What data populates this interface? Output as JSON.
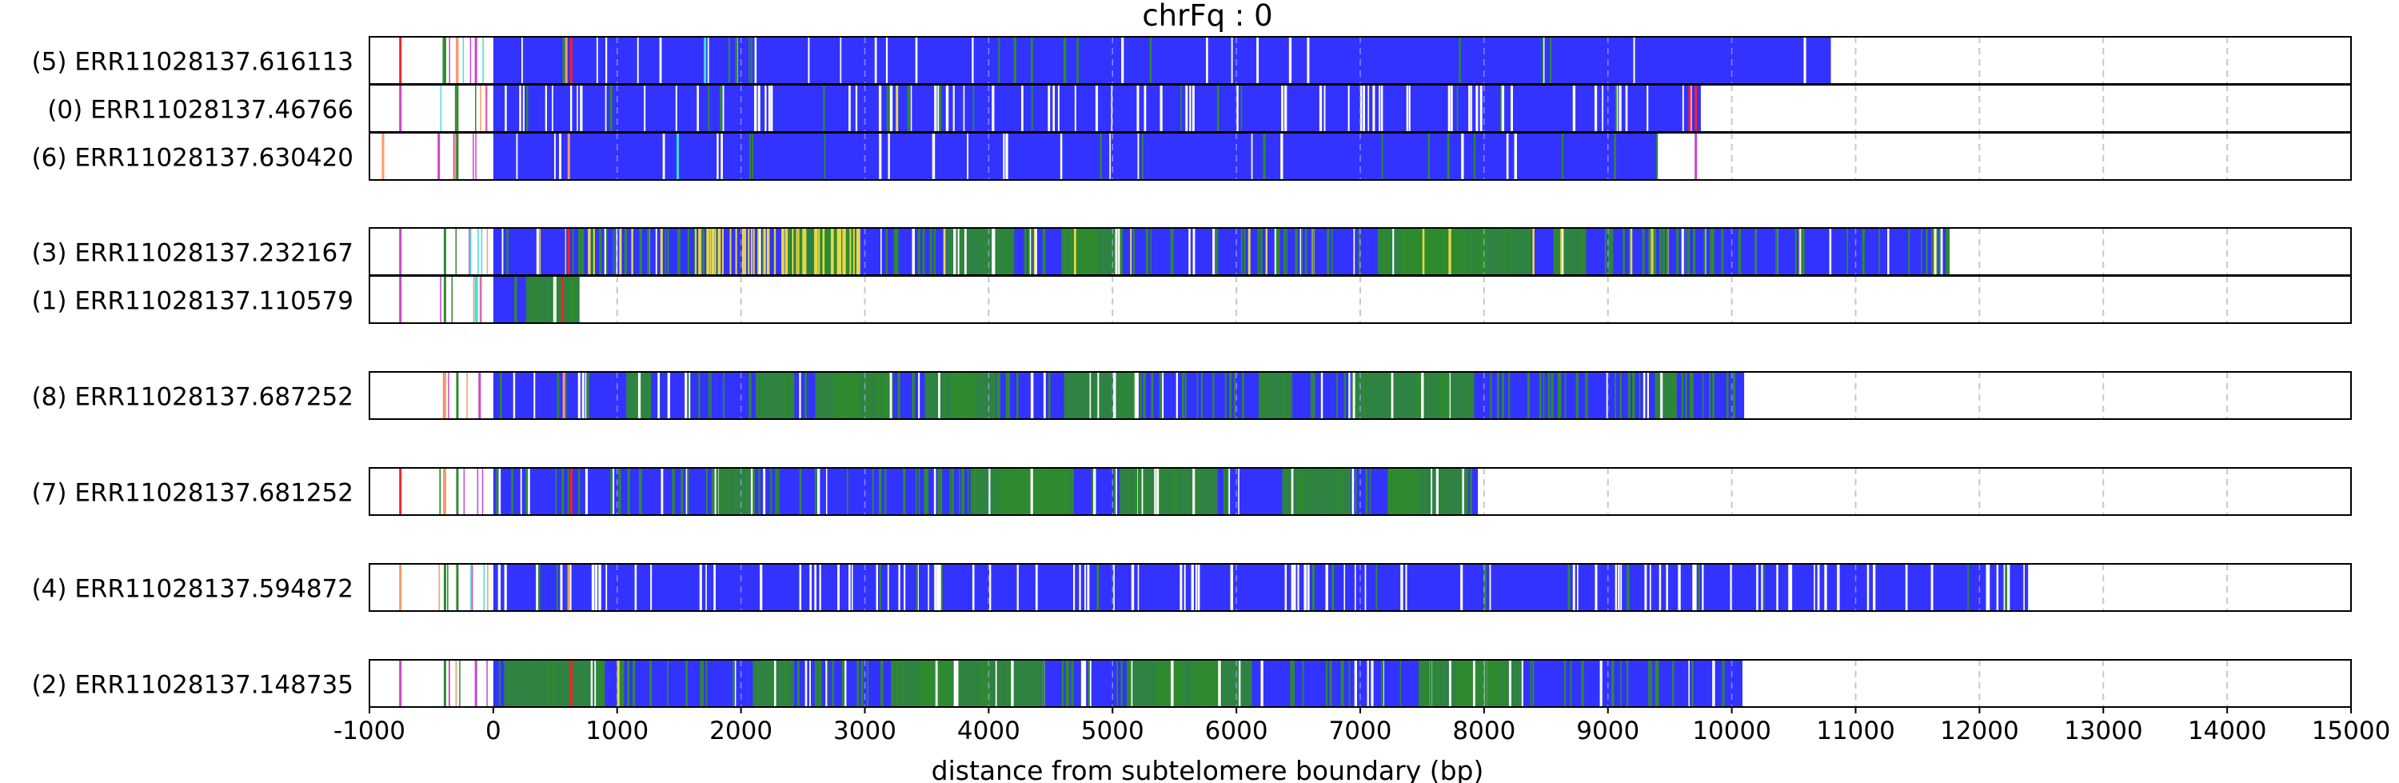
{
  "chart_data": {
    "type": "bar",
    "title": "chrFq : 0",
    "xlabel": "distance from subtelomere boundary (bp)",
    "ylabel": "",
    "xlim": [
      -1000,
      15000
    ],
    "xticks": [
      -1000,
      0,
      1000,
      2000,
      3000,
      4000,
      5000,
      6000,
      7000,
      8000,
      9000,
      10000,
      11000,
      12000,
      13000,
      14000,
      15000
    ],
    "grid": "vertical dashed at each tick",
    "colors": {
      "blue": "#3333ff",
      "green": "#2e8b2e",
      "yellow": "#e6d84a",
      "red": "#ff2020",
      "magenta": "#cc44cc",
      "cyan": "#40e0d0",
      "orange": "#ff9966",
      "white": "#ffffff",
      "grid": "#c8c8c8"
    },
    "groups": [
      {
        "reads": [
          {
            "label": "(5) ERR11028137.616113",
            "start": -1000,
            "end": 10800,
            "pattern": "blue",
            "specials": [
              [
                -760,
                "red"
              ],
              [
                -400,
                "green"
              ],
              [
                -300,
                "orange"
              ],
              [
                -150,
                "magenta"
              ],
              [
                580,
                "orange"
              ],
              [
                620,
                "red"
              ],
              [
                1700,
                "cyan"
              ]
            ]
          },
          {
            "label": "(0) ERR11028137.46766",
            "start": -1000,
            "end": 9750,
            "pattern": "blue-white",
            "specials": [
              [
                -760,
                "magenta"
              ],
              [
                -300,
                "green"
              ],
              [
                3250,
                "yellow"
              ],
              [
                9650,
                "red"
              ],
              [
                9700,
                "red"
              ]
            ]
          },
          {
            "label": "(6) ERR11028137.630420",
            "start": -1000,
            "end": 9400,
            "pattern": "blue",
            "specials": [
              [
                -900,
                "orange"
              ],
              [
                -450,
                "magenta"
              ],
              [
                -300,
                "green"
              ],
              [
                600,
                "orange"
              ],
              [
                1480,
                "cyan"
              ],
              [
                9700,
                "magenta"
              ]
            ]
          }
        ]
      },
      {
        "reads": [
          {
            "label": "(3) ERR11028137.232167",
            "start": -1000,
            "end": 11750,
            "pattern": "mixed-yellow",
            "specials": [
              [
                -760,
                "magenta"
              ],
              [
                -400,
                "green"
              ],
              [
                600,
                "red"
              ]
            ]
          },
          {
            "label": "(1) ERR11028137.110579",
            "start": -1000,
            "end": 700,
            "pattern": "mixed",
            "specials": [
              [
                -760,
                "magenta"
              ],
              [
                -400,
                "green"
              ],
              [
                -150,
                "cyan"
              ],
              [
                550,
                "red"
              ]
            ]
          }
        ]
      },
      {
        "reads": [
          {
            "label": "(8) ERR11028137.687252",
            "start": -1000,
            "end": 10100,
            "pattern": "mixed-green",
            "specials": [
              [
                -400,
                "orange"
              ],
              [
                -300,
                "green"
              ],
              [
                -120,
                "magenta"
              ],
              [
                560,
                "orange"
              ]
            ]
          }
        ]
      },
      {
        "reads": [
          {
            "label": "(7) ERR11028137.681252",
            "start": -1000,
            "end": 7950,
            "pattern": "mixed-green",
            "specials": [
              [
                -760,
                "red"
              ],
              [
                -400,
                "orange"
              ],
              [
                -300,
                "green"
              ],
              [
                620,
                "red"
              ]
            ]
          }
        ]
      },
      {
        "reads": [
          {
            "label": "(4) ERR11028137.594872",
            "start": -1000,
            "end": 12400,
            "pattern": "blue-white",
            "specials": [
              [
                -760,
                "orange"
              ],
              [
                -400,
                "green"
              ],
              [
                -300,
                "green"
              ],
              [
                600,
                "orange"
              ]
            ]
          }
        ]
      },
      {
        "reads": [
          {
            "label": "(2) ERR11028137.148735",
            "start": -1000,
            "end": 10100,
            "pattern": "mixed-green",
            "specials": [
              [
                -760,
                "magenta"
              ],
              [
                -400,
                "green"
              ],
              [
                -150,
                "magenta"
              ],
              [
                620,
                "red"
              ],
              [
                1000,
                "yellow"
              ]
            ]
          }
        ]
      }
    ]
  }
}
